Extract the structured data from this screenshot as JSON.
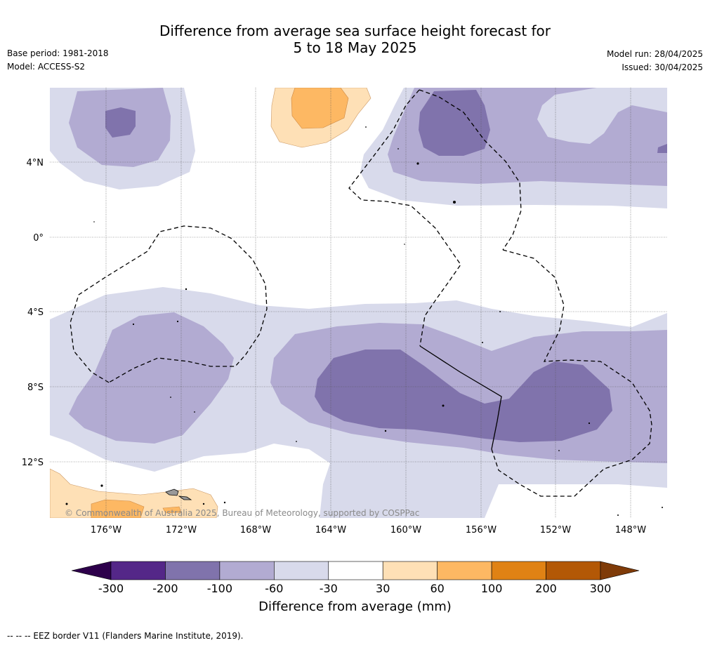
{
  "title_line1": "Difference from average sea surface height forecast for",
  "title_line2": "5 to 18 May 2025",
  "meta_left": {
    "base_period": "Base period: 1981-2018",
    "model": "Model: ACCESS-S2"
  },
  "meta_right": {
    "model_run": "Model run: 28/04/2025",
    "issued": "Issued: 30/04/2025"
  },
  "lat_labels": [
    "4°N",
    "0°",
    "4°S",
    "8°S",
    "12°S"
  ],
  "lon_labels": [
    "176°W",
    "172°W",
    "168°W",
    "164°W",
    "160°W",
    "156°W",
    "152°W",
    "148°W"
  ],
  "copyright": "© Commonwealth of Australia 2025, Bureau of Meteorology, supported by COSPPac",
  "colorbar": {
    "title": "Difference from average (mm)",
    "ticks": [
      "-300",
      "-200",
      "-100",
      "-60",
      "-30",
      "30",
      "60",
      "100",
      "200",
      "300"
    ],
    "colors": [
      "#2d004b",
      "#542788",
      "#8073ac",
      "#b2abd2",
      "#d8daeb",
      "#ffffff",
      "#fee0b6",
      "#fdb863",
      "#e08214",
      "#b35806",
      "#7f3b08"
    ]
  },
  "footer": "--  --  -- EEZ border V11 (Flanders Marine Institute, 2019).",
  "colors": {
    "purple_light": "#d8daeb",
    "purple_mid": "#b2abd2",
    "purple_dark": "#8073ac",
    "orange_light": "#fee0b6",
    "orange_mid": "#fdb863"
  }
}
